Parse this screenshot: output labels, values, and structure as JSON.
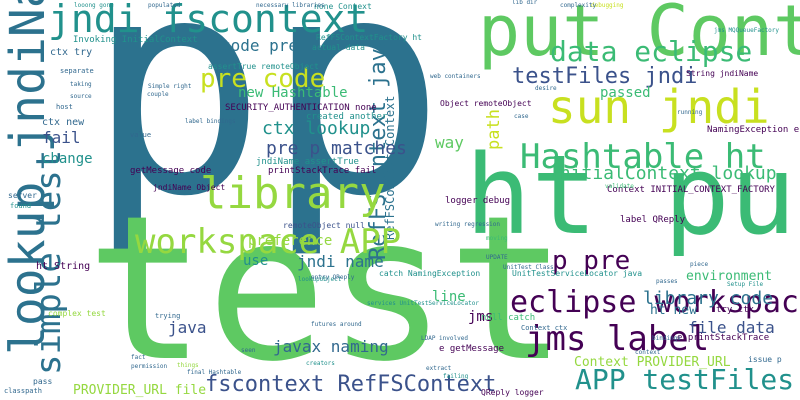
{
  "palette": {
    "background": "#ffffff",
    "dark_teal": "#2c728e",
    "teal": "#21918c",
    "green": "#3bbb75",
    "light_green": "#5ec962",
    "yellow_green": "#95d840",
    "yellow": "#c8e020",
    "purple": "#440154",
    "indigo": "#3b528b",
    "navy": "#31688e"
  },
  "words": {
    "p_big": "p",
    "p_second": "p",
    "test": "test",
    "ht_put": "ht put",
    "put_context": "put Context",
    "jndi_fscontext": "jndi fscontext",
    "lookup_jndiname": "lookup jndiName",
    "sun_jndi": "sun jndi",
    "library": "library",
    "workspace_app": "workspace APP",
    "hashtable_ht": "Hashtable ht",
    "eclipse_workspace": "eclipse workspace",
    "jms_label": "jms label",
    "app_testfiles": "APP testFiles",
    "simple_test": "simple test",
    "data_eclipse": "data eclipse",
    "testfiles_jndi": "testFiles jndi",
    "fscontext_refsc": "fscontext RefFSContext",
    "pre_code": "pre code",
    "initialcontext_lookup": "InitialContext lookup",
    "p_pre": "p pre",
    "library_code": "library code",
    "pre_p_matches": "pre p matches",
    "ctx_lookup": "ctx lookup",
    "refsc_java": "RefFSContext java",
    "new_hashtable": "new Hashtable",
    "code_pre": "code pre",
    "preference": "preference",
    "jndi_name": "jndi name",
    "javax_naming": "javax naming",
    "provider_url_file": "PROVIDER_URL file",
    "context_provider_url": "Context PROVIDER_URL",
    "file_data": "file data",
    "environment": "environment",
    "passed": "passed",
    "way": "way",
    "line": "line",
    "java": "java",
    "fail": "fail",
    "change": "change",
    "use": "use",
    "ht_new": "ht new",
    "jms": "jms",
    "path": "path",
    "ctx_try": "ctx try",
    "ctx_new": "ctx new",
    "ht_string": "ht String",
    "server": "server",
    "found": "found",
    "invoking_initialcontext": "Invoking InitialContext",
    "none_context": "none Context",
    "actual_data": "actual data",
    "security_auth": "SECURITY_AUTHENTICATION none",
    "created_another": "created another",
    "jndiname_asserttrue": "jndiName assertTrue",
    "printstacktrace_fail": "printStackTrace fail",
    "getmessage_code": "getMessage code",
    "jndiname_object": "jndiName Object",
    "remoteobject_null": "remoteObject null",
    "refsc_context": "RefFSContext Context",
    "context_initial_cf": "Context INITIAL_CONTEXT_FACTORY",
    "refsc_factory": "RefFSContextFactory ht",
    "label_qreply": "label QReply",
    "object_remoteobject": "Object remoteObject",
    "namingexception_e": "NamingException e",
    "string_jndiname": "String jndiName",
    "e_getmessage": "e getMessage",
    "e_printstacktrace": "e printStackTrace",
    "logger_debug": "logger debug",
    "null_catch": "null catch",
    "qreply_logger": "QReply logger",
    "catch_namingexception": "catch NamingException",
    "context_ctx": "Context ctx",
    "issue_p": "issue p",
    "try_ctx": "try ctx",
    "fail_ht": "fail ht",
    "unittest_locator": "UnitTestServiceLocator java",
    "assert_true_remote": "assertTrue remoteObject",
    "lookupobject": "lookupObject",
    "jms_mqqueue": "jms MQQueueFactory",
    "complex_test": "complex test",
    "separate": "separate",
    "host": "host",
    "value": "value",
    "source": "source",
    "taking": "taking",
    "trying": "trying",
    "fact": "fact",
    "permission": "permission",
    "things": "things",
    "pass": "pass",
    "classpath": "classpath",
    "failing": "failing",
    "creators": "creators",
    "debugging": "debugging",
    "populated": "populated",
    "necessary_libraries": "necessary libraries",
    "running": "running",
    "complexity": "complexity",
    "lib_dir": "lib dir",
    "final_hashtable": "final Hashtable",
    "futures_around": "futures around",
    "extract": "extract",
    "seen": "seen",
    "simple_right": "Simple right",
    "couple": "couple",
    "label_bindings": "label bindings",
    "web_containers": "web containers",
    "desire": "desire",
    "case": "case",
    "looong_gone": "looong gone",
    "still_exists": "still exists",
    "mean": "mean",
    "entry_qreply": "entry QReply",
    "services_locator": "services UnitTestServiceLocator",
    "ldap_involved": "LDAP involved",
    "writing_regression": "writing regression",
    "moving": "moving",
    "validate": "validate",
    "update": "UPDATE",
    "unittest_class": "UnitTest Class",
    "passes": "passes",
    "piece": "piece",
    "setup_file": "Setup File",
    "bindings": "bindings",
    "context": "context"
  }
}
